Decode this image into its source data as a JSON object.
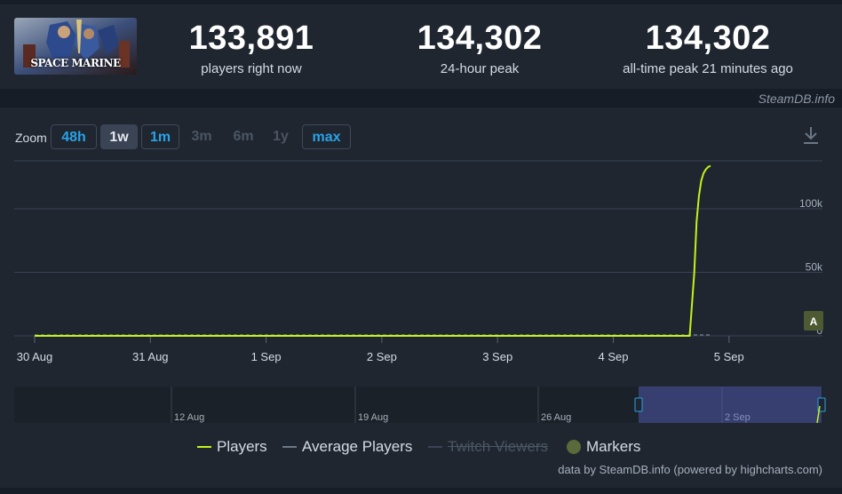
{
  "watermark": "SteamDB.info",
  "game": {
    "logo_text": "SPACE MARINE"
  },
  "stats": [
    {
      "value": "133,891",
      "label": "players right now"
    },
    {
      "value": "134,302",
      "label": "24-hour peak"
    },
    {
      "value": "134,302",
      "label": "all-time peak 21 minutes ago"
    }
  ],
  "zoom": {
    "label": "Zoom",
    "buttons": [
      {
        "label": "48h",
        "state": "active"
      },
      {
        "label": "1w",
        "state": "selected"
      },
      {
        "label": "1m",
        "state": "active"
      },
      {
        "label": "3m",
        "state": "disabled"
      },
      {
        "label": "6m",
        "state": "disabled"
      },
      {
        "label": "1y",
        "state": "disabled"
      },
      {
        "label": "max",
        "state": "active"
      }
    ]
  },
  "legend": {
    "players": "Players",
    "average": "Average Players",
    "twitch": "Twitch Viewers",
    "markers": "Markers"
  },
  "credits": "data by SteamDB.info (powered by highcharts.com)",
  "colors": {
    "players": "#c4f21a",
    "average": "#6b7785",
    "accent": "#29a3e8",
    "background": "#1f2630"
  },
  "chart_data": {
    "type": "line",
    "x_labels": [
      "30 Aug",
      "31 Aug",
      "1 Sep",
      "2 Sep",
      "3 Sep",
      "4 Sep",
      "5 Sep"
    ],
    "y_ticks": [
      "0",
      "50k",
      "100k"
    ],
    "ylim": [
      0,
      135000
    ],
    "series": [
      {
        "name": "Players",
        "x": [
          0,
          5.6,
          5.66,
          5.7,
          5.72,
          5.74,
          5.76,
          5.78,
          5.8,
          5.82,
          5.84
        ],
        "values": [
          0,
          0,
          0,
          50000,
          90000,
          110000,
          122000,
          128000,
          131000,
          133000,
          133891
        ]
      },
      {
        "name": "Average Players",
        "x": [
          0,
          5.84
        ],
        "values": [
          0,
          0
        ]
      }
    ],
    "marker": {
      "label": "A"
    },
    "navigator": {
      "labels": [
        "12 Aug",
        "19 Aug",
        "26 Aug",
        "2 Sep"
      ]
    }
  }
}
